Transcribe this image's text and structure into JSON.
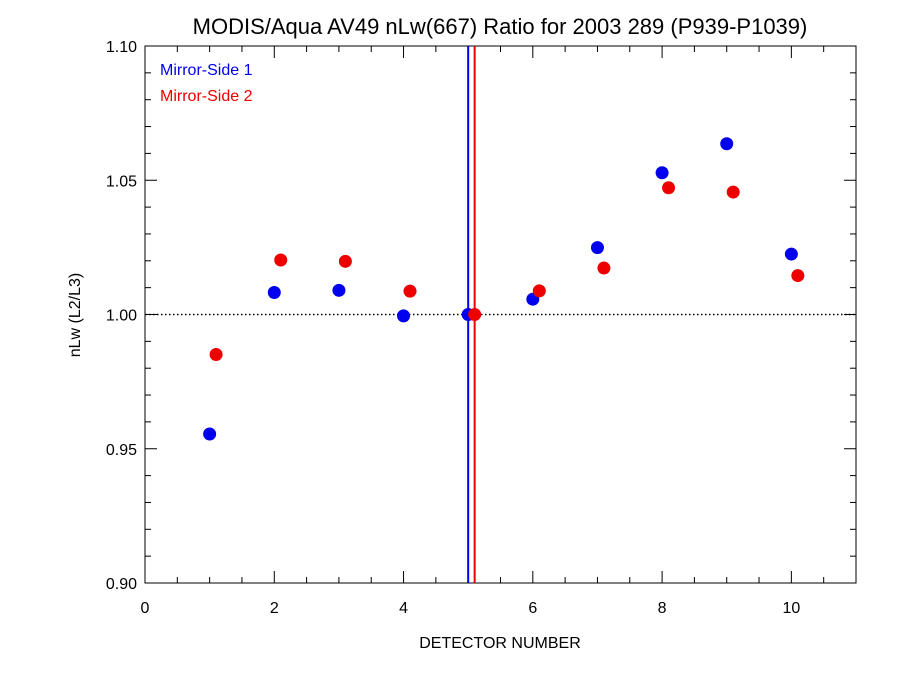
{
  "chart_data": {
    "type": "scatter",
    "title": "MODIS/Aqua AV49 nLw(667) Ratio for 2003 289 (P939-P1039)",
    "xlabel": "DETECTOR NUMBER",
    "ylabel": "nLw (L2/L3)",
    "xlim": [
      0,
      11
    ],
    "ylim": [
      0.9,
      1.1
    ],
    "x_ticks": [
      "0",
      "2",
      "4",
      "6",
      "8",
      "10"
    ],
    "x_tick_values": [
      0,
      2,
      4,
      6,
      8,
      10
    ],
    "y_ticks": [
      "0.90",
      "0.95",
      "1.00",
      "1.05",
      "1.10"
    ],
    "y_tick_values": [
      0.9,
      0.95,
      1.0,
      1.05,
      1.1
    ],
    "reference_line_y": 1.0,
    "vertical_lines": [
      {
        "x": 5.0,
        "color": "#0000ee"
      },
      {
        "x": 5.1,
        "color": "#ee0000"
      }
    ],
    "legend_placement": "top-left",
    "series": [
      {
        "name": "Mirror-Side 1",
        "color": "#0000ee",
        "x": [
          1,
          2,
          3,
          4,
          5,
          6,
          7,
          8,
          9,
          10
        ],
        "y": [
          0.9555,
          1.0082,
          1.009,
          0.9995,
          1.0,
          1.0057,
          1.0249,
          1.0528,
          1.0636,
          1.0225
        ]
      },
      {
        "name": "Mirror-Side 2",
        "color": "#ee0000",
        "x": [
          1.1,
          2.1,
          3.1,
          4.1,
          5.1,
          6.1,
          7.1,
          8.1,
          9.1,
          10.1
        ],
        "y": [
          0.9851,
          1.0203,
          1.0198,
          1.0087,
          1.0,
          1.0088,
          1.0173,
          1.0472,
          1.0456,
          1.0145
        ]
      }
    ]
  }
}
